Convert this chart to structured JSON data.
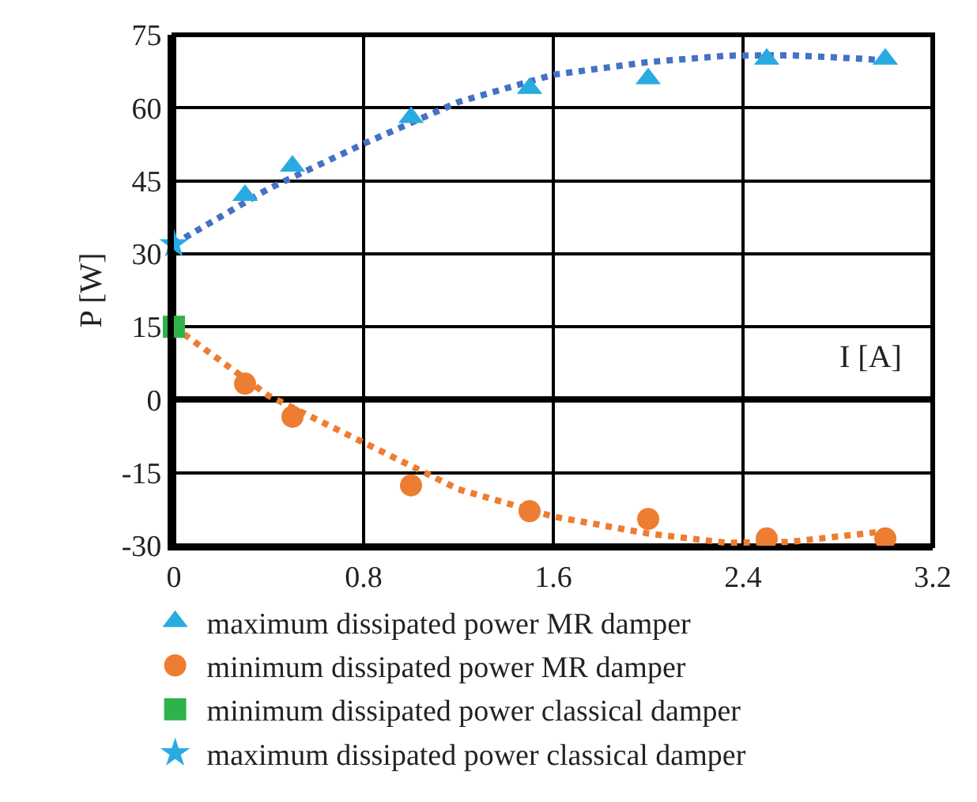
{
  "chart_data": {
    "type": "scatter",
    "xlabel": "I [A]",
    "ylabel": "P [W]",
    "xlim": [
      0,
      3.2
    ],
    "xticks": [
      0,
      0.8,
      1.6,
      2.4,
      3.2
    ],
    "ylim": [
      -30,
      75
    ],
    "yticks": [
      -30,
      -15,
      0,
      15,
      30,
      45,
      60,
      75
    ],
    "grid": true,
    "legend": "bottom",
    "line_style": "dotted",
    "series": [
      {
        "type": "line",
        "color": "#4472c4",
        "marker": "none",
        "x": [
          0,
          0.4,
          0.8,
          1.2,
          1.6,
          2.0,
          2.33,
          2.6,
          2.93,
          3.0
        ],
        "values": [
          32,
          43.4,
          52.6,
          61.2,
          66.8,
          69.4,
          70.7,
          70.8,
          70,
          69.6
        ]
      },
      {
        "type": "line",
        "color": "#ed7d31",
        "marker": "none",
        "x": [
          0,
          0.4,
          0.8,
          1.2,
          1.6,
          2.0,
          2.33,
          2.6,
          2.93,
          3.0
        ],
        "values": [
          15,
          0.8,
          -8.8,
          -18.4,
          -24,
          -27.5,
          -29.4,
          -29.2,
          -27.4,
          -27
        ]
      },
      {
        "name": "maximum dissipated power MR damper",
        "color": "#29abe2",
        "marker": "triangle",
        "x": [
          0.3,
          0.5,
          1.0,
          1.5,
          2.0,
          2.5,
          3.0
        ],
        "values": [
          42,
          48,
          58,
          64,
          66,
          70,
          70
        ]
      },
      {
        "name": "minimum dissipated power MR damper",
        "color": "#ed7d31",
        "marker": "circle",
        "x": [
          0.3,
          0.5,
          1.0,
          1.5,
          2.0,
          2.5,
          3.0
        ],
        "values": [
          3.3,
          -3.5,
          -17.6,
          -22.9,
          -24.5,
          -28.5,
          -28.5
        ]
      },
      {
        "name": "minimum dissipated power classical damper",
        "color": "#2db34a",
        "marker": "square",
        "x": [
          0
        ],
        "values": [
          15
        ]
      },
      {
        "name": "maximum dissipated power classical damper",
        "color": "#29abe2",
        "marker": "star",
        "x": [
          0
        ],
        "values": [
          32
        ]
      }
    ]
  }
}
